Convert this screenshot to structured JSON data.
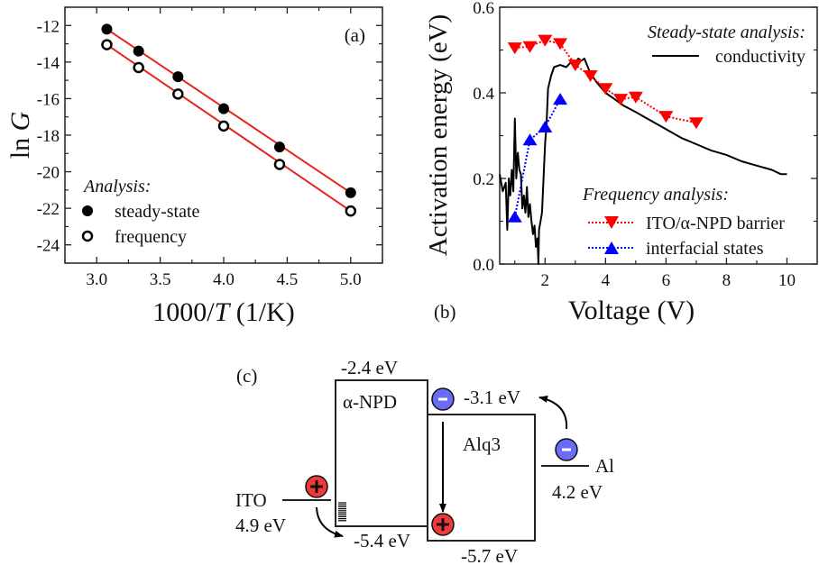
{
  "chart_data": [
    {
      "panel": "(a)",
      "type": "scatter",
      "title": "",
      "xlabel": "1000/T (1/K)",
      "ylabel": "ln G",
      "xlim": [
        2.75,
        5.25
      ],
      "ylim": [
        -25,
        -11
      ],
      "xticks": [
        3.0,
        3.5,
        4.0,
        4.5,
        5.0
      ],
      "xtick_labels": [
        "3.0",
        "3.5",
        "4.0",
        "4.5",
        "5.0"
      ],
      "yticks": [
        -12,
        -14,
        -16,
        -18,
        -20,
        -22,
        -24
      ],
      "ytick_labels": [
        "-12",
        "-14",
        "-16",
        "-18",
        "-20",
        "-22",
        "-24"
      ],
      "grid": false,
      "legend_title": "Analysis:",
      "legend_position": "bottom-left",
      "fit_line_color": "#e8231c",
      "series": [
        {
          "name": "steady-state",
          "marker": "filled-circle",
          "x": [
            3.08,
            3.33,
            3.64,
            4.0,
            4.44,
            5.0
          ],
          "y": [
            -12.2,
            -13.4,
            -14.8,
            -16.55,
            -18.65,
            -21.15
          ],
          "fit": [
            [
              3.08,
              -12.2
            ],
            [
              5.0,
              -21.15
            ]
          ]
        },
        {
          "name": "frequency",
          "marker": "open-circle",
          "x": [
            3.08,
            3.33,
            3.64,
            4.0,
            4.44,
            5.0
          ],
          "y": [
            -13.05,
            -14.3,
            -15.75,
            -17.5,
            -19.6,
            -22.15
          ],
          "fit": [
            [
              3.08,
              -13.05
            ],
            [
              5.0,
              -22.15
            ]
          ]
        }
      ]
    },
    {
      "panel": "(b)",
      "type": "line",
      "title": "",
      "xlabel": "Voltage (V)",
      "ylabel": "Activation energy (eV)",
      "xlim": [
        0.5,
        11
      ],
      "ylim": [
        0,
        0.6
      ],
      "xticks": [
        2,
        4,
        6,
        8,
        10
      ],
      "xtick_labels": [
        "2",
        "4",
        "6",
        "8",
        "10"
      ],
      "yticks": [
        0.0,
        0.2,
        0.4,
        0.6
      ],
      "ytick_labels": [
        "0.0",
        "0.2",
        "0.4",
        "0.6"
      ],
      "grid": false,
      "legend_groups": [
        {
          "title": "Steady-state analysis:",
          "position": "top-right",
          "entries": [
            "conductivity"
          ]
        },
        {
          "title": "Frequency analysis:",
          "position": "bottom-right",
          "entries": [
            "ITO/α-NPD barrier",
            "interfacial states"
          ]
        }
      ],
      "series": [
        {
          "name": "conductivity",
          "style": "solid",
          "color": "#000000",
          "x": [
            0.5,
            0.6,
            0.7,
            0.75,
            0.8,
            0.85,
            0.9,
            0.95,
            1.0,
            1.05,
            1.1,
            1.15,
            1.2,
            1.25,
            1.3,
            1.35,
            1.4,
            1.45,
            1.5,
            1.55,
            1.6,
            1.65,
            1.7,
            1.75,
            1.78,
            1.8,
            1.85,
            1.9,
            1.95,
            2.0,
            2.05,
            2.1,
            2.2,
            2.3,
            2.5,
            2.7,
            2.9,
            3.0,
            3.1,
            3.2,
            3.3,
            3.5,
            3.7,
            4.0,
            4.3,
            4.6,
            5.0,
            5.5,
            6.0,
            6.5,
            7.0,
            7.5,
            8.0,
            8.5,
            9.0,
            9.5,
            9.8,
            10.0
          ],
          "y": [
            0.21,
            0.17,
            0.19,
            0.08,
            0.2,
            0.16,
            0.22,
            0.17,
            0.34,
            0.2,
            0.26,
            0.22,
            0.21,
            0.13,
            0.16,
            0.12,
            0.18,
            0.11,
            0.14,
            0.1,
            0.07,
            0.09,
            0.04,
            0.06,
            0.0,
            0.08,
            0.1,
            0.12,
            0.2,
            0.28,
            0.33,
            0.41,
            0.44,
            0.46,
            0.465,
            0.46,
            0.475,
            0.47,
            0.48,
            0.475,
            0.48,
            0.445,
            0.425,
            0.4,
            0.385,
            0.37,
            0.355,
            0.335,
            0.315,
            0.295,
            0.28,
            0.265,
            0.255,
            0.24,
            0.23,
            0.22,
            0.21,
            0.21
          ]
        },
        {
          "name": "ITO/α-NPD barrier",
          "style": "dotted",
          "marker": "down-triangle",
          "color": "#ff0000",
          "x": [
            1,
            1.5,
            2,
            2.5,
            3,
            3.5,
            4,
            4.5,
            5,
            6,
            7
          ],
          "y": [
            0.505,
            0.508,
            0.523,
            0.515,
            0.465,
            0.44,
            0.41,
            0.385,
            0.39,
            0.345,
            0.33
          ]
        },
        {
          "name": "interfacial states",
          "style": "dotted",
          "marker": "up-triangle",
          "color": "#0000ff",
          "x": [
            1,
            1.5,
            2,
            2.5
          ],
          "y": [
            0.11,
            0.29,
            0.32,
            0.385
          ]
        }
      ]
    },
    {
      "panel": "(c)",
      "type": "diagram",
      "title": "Energy level diagram",
      "layers": [
        {
          "name": "ITO",
          "level_label": "4.9 eV"
        },
        {
          "name": "α-NPD",
          "lumo": "-2.4 eV",
          "homo": "-5.4 eV"
        },
        {
          "name": "Alq3",
          "lumo": "-3.1 eV",
          "homo": "-5.7 eV"
        },
        {
          "name": "Al",
          "level_label": "4.2 eV"
        }
      ],
      "charges": [
        {
          "type": "hole",
          "symbol": "+",
          "location": "ITO",
          "color": "#f03a3a"
        },
        {
          "type": "hole",
          "symbol": "+",
          "location": "Alq3 HOMO",
          "color": "#f03a3a"
        },
        {
          "type": "electron",
          "symbol": "-",
          "location": "Alq3 LUMO",
          "color": "#6b6cf5"
        },
        {
          "type": "electron",
          "symbol": "-",
          "location": "Al",
          "color": "#6b6cf5"
        }
      ]
    }
  ],
  "labels": {
    "panel_a": "(a)",
    "panel_b": "(b)",
    "panel_c": "(c)",
    "a_ylabel_ln": "ln ",
    "a_ylabel_G": "G",
    "a_xlabel_pre": "1000/",
    "a_xlabel_T": "T",
    "a_xlabel_post": " (1/K)",
    "a_legend_title": "Analysis:",
    "a_legend_1": "steady-state",
    "a_legend_2": "frequency",
    "b_ylabel": "Activation energy (eV)",
    "b_xlabel": "Voltage (V)",
    "b_legend_title_1": "Steady-state analysis:",
    "b_legend_1": "conductivity",
    "b_legend_title_2": "Frequency analysis:",
    "b_legend_2": "ITO/α-NPD barrier",
    "b_legend_3": "interfacial states",
    "c_npd_lumo": "-2.4 eV",
    "c_npd_homo": "-5.4 eV",
    "c_npd_name": "α-NPD",
    "c_alq_lumo": "-3.1 eV",
    "c_alq_homo": "-5.7 eV",
    "c_alq_name": "Alq3",
    "c_ito_name": "ITO",
    "c_ito_level": "4.9 eV",
    "c_al_name": "Al",
    "c_al_level": "4.2 eV"
  }
}
